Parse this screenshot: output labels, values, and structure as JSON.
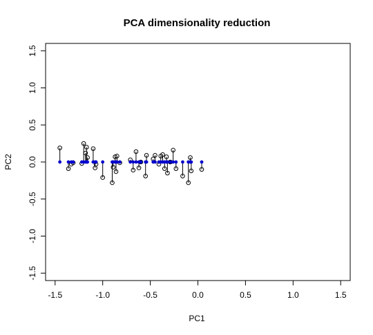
{
  "chart_data": {
    "type": "scatter",
    "title": "PCA dimensionality reduction",
    "xlabel": "PC1",
    "ylabel": "PC2",
    "xlim": [
      -1.6,
      1.6
    ],
    "ylim": [
      -1.6,
      1.6
    ],
    "x_ticks": [
      "-1.5",
      "-1.0",
      "-0.5",
      "0.0",
      "0.5",
      "1.0",
      "1.5"
    ],
    "y_ticks": [
      "-1.5",
      "-1.0",
      "-0.5",
      "0.0",
      "0.5",
      "1.0",
      "1.5"
    ],
    "grid": false,
    "colors": {
      "projected": "#0000cc",
      "original": "#000000",
      "segment": "#000000"
    },
    "series": [
      {
        "values_x": [
          -1.45,
          -1.36,
          -1.33,
          -1.31,
          -1.22,
          -1.2,
          -1.18,
          -1.17,
          -1.16,
          -1.1,
          -1.08,
          -1.07,
          -1.0,
          -0.9,
          -0.89,
          -0.87,
          -0.86,
          -0.85,
          -0.82,
          -0.71,
          -0.68,
          -0.65,
          -0.62,
          -0.6,
          -0.55,
          -0.54,
          -0.47,
          -0.45,
          -0.41,
          -0.39,
          -0.37,
          -0.35,
          -0.33,
          -0.32,
          -0.29,
          -0.26,
          -0.23,
          -0.16,
          -0.1,
          -0.08,
          -0.07,
          0.04
        ],
        "original_y": [
          0.19,
          -0.09,
          -0.03,
          -0.01,
          -0.02,
          0.25,
          0.12,
          0.2,
          0.06,
          0.18,
          -0.08,
          -0.03,
          -0.21,
          -0.28,
          -0.07,
          0.07,
          -0.13,
          0.08,
          -0.01,
          0.03,
          -0.11,
          0.14,
          -0.08,
          0.0,
          -0.19,
          0.09,
          0.04,
          0.09,
          -0.03,
          0.08,
          0.1,
          -0.09,
          0.07,
          -0.15,
          0.0,
          0.16,
          -0.09,
          -0.19,
          -0.28,
          0.06,
          -0.12,
          -0.1
        ],
        "projected_y": 0
      }
    ]
  }
}
